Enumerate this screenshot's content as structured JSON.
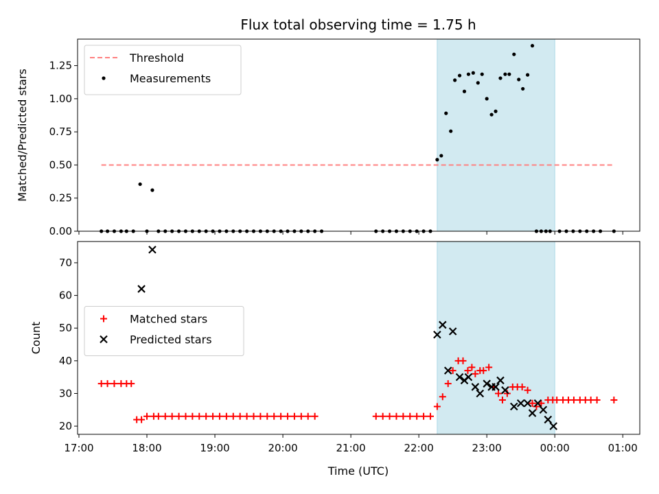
{
  "chart_data": {
    "title": "Flux total observing time = 1.75 h",
    "xlabel": "Time (UTC)",
    "x_unit": "hours after 17:00 UTC",
    "xlim": [
      -0.02,
      8.25
    ],
    "xticks": [
      {
        "v": 0,
        "label": "17:00"
      },
      {
        "v": 1,
        "label": "18:00"
      },
      {
        "v": 2,
        "label": "19:00"
      },
      {
        "v": 3,
        "label": "20:00"
      },
      {
        "v": 4,
        "label": "21:00"
      },
      {
        "v": 5,
        "label": "22:00"
      },
      {
        "v": 6,
        "label": "23:00"
      },
      {
        "v": 7,
        "label": "00:00"
      },
      {
        "v": 8,
        "label": "01:00"
      }
    ],
    "highlight_span": [
      5.27,
      7.0
    ],
    "highlight_color": "#add8e6",
    "panels": [
      {
        "type": "scatter",
        "ylabel": "Matched/Predicted stars",
        "ylim": [
          0,
          1.45
        ],
        "yticks": [
          0,
          0.25,
          0.5,
          0.75,
          1.0,
          1.25
        ],
        "ytick_labels": [
          "0.00",
          "0.25",
          "0.50",
          "0.75",
          "1.00",
          "1.25"
        ],
        "legend_position": "top-left",
        "threshold": {
          "name": "Threshold",
          "value": 0.5,
          "x_range": [
            0.33,
            7.87
          ],
          "color": "#ff7f7f"
        },
        "series": [
          {
            "name": "Measurements",
            "marker": "dot",
            "color": "#000000",
            "x": [
              0.33,
              0.42,
              0.52,
              0.62,
              0.7,
              0.8,
              0.9,
              1.0,
              1.08,
              1.17,
              1.27,
              1.37,
              1.47,
              1.57,
              1.67,
              1.77,
              1.87,
              1.97,
              2.07,
              2.17,
              2.27,
              2.37,
              2.47,
              2.57,
              2.67,
              2.77,
              2.87,
              2.97,
              3.07,
              3.17,
              3.27,
              3.37,
              3.47,
              3.57,
              4.37,
              4.47,
              4.57,
              4.67,
              4.77,
              4.87,
              4.97,
              5.07,
              5.17,
              5.27,
              5.33,
              5.4,
              5.47,
              5.53,
              5.6,
              5.67,
              5.73,
              5.8,
              5.87,
              5.93,
              6.0,
              6.07,
              6.13,
              6.2,
              6.27,
              6.33,
              6.4,
              6.47,
              6.53,
              6.6,
              6.67,
              6.73,
              6.8,
              6.87,
              6.93,
              7.07,
              7.17,
              7.27,
              7.37,
              7.47,
              7.57,
              7.67,
              7.87
            ],
            "y": [
              0,
              0,
              0,
              0,
              0,
              0,
              0.355,
              0,
              0.31,
              0,
              0,
              0,
              0,
              0,
              0,
              0,
              0,
              0,
              0,
              0,
              0,
              0,
              0,
              0,
              0,
              0,
              0,
              0,
              0,
              0,
              0,
              0,
              0,
              0,
              0,
              0,
              0,
              0,
              0,
              0,
              0,
              0,
              0,
              0.54,
              0.57,
              0.89,
              0.755,
              1.14,
              1.175,
              1.055,
              1.185,
              1.195,
              1.12,
              1.185,
              1.0,
              0.88,
              0.905,
              1.155,
              1.185,
              1.185,
              1.335,
              1.145,
              1.075,
              1.18,
              1.4,
              0,
              0,
              0,
              0,
              0,
              0,
              0,
              0,
              0,
              0,
              0,
              0
            ]
          }
        ]
      },
      {
        "type": "scatter",
        "ylabel": "Count",
        "ylim": [
          17.5,
          76.5
        ],
        "yticks": [
          20,
          30,
          40,
          50,
          60,
          70
        ],
        "ytick_labels": [
          "20",
          "30",
          "40",
          "50",
          "60",
          "70"
        ],
        "legend_position": "center-left",
        "series": [
          {
            "name": "Matched stars",
            "marker": "plus",
            "color": "#ff0000",
            "x": [
              0.33,
              0.42,
              0.52,
              0.62,
              0.7,
              0.77,
              0.85,
              0.92,
              1.0,
              1.1,
              1.17,
              1.27,
              1.37,
              1.47,
              1.57,
              1.67,
              1.77,
              1.87,
              1.97,
              2.07,
              2.17,
              2.27,
              2.37,
              2.47,
              2.57,
              2.67,
              2.77,
              2.87,
              2.97,
              3.07,
              3.17,
              3.27,
              3.37,
              3.47,
              4.37,
              4.47,
              4.57,
              4.67,
              4.77,
              4.87,
              4.97,
              5.07,
              5.17,
              5.27,
              5.35,
              5.43,
              5.5,
              5.58,
              5.65,
              5.72,
              5.78,
              5.83,
              5.9,
              5.95,
              6.03,
              6.1,
              6.17,
              6.23,
              6.3,
              6.38,
              6.45,
              6.52,
              6.6,
              6.67,
              6.73,
              6.8,
              6.9,
              6.97,
              7.03,
              7.12,
              7.2,
              7.28,
              7.37,
              7.45,
              7.53,
              7.62,
              7.87
            ],
            "y": [
              33,
              33,
              33,
              33,
              33,
              33,
              22,
              22,
              23,
              23,
              23,
              23,
              23,
              23,
              23,
              23,
              23,
              23,
              23,
              23,
              23,
              23,
              23,
              23,
              23,
              23,
              23,
              23,
              23,
              23,
              23,
              23,
              23,
              23,
              23,
              23,
              23,
              23,
              23,
              23,
              23,
              23,
              23,
              26,
              29,
              33,
              37,
              40,
              40,
              37,
              38,
              36,
              37,
              37,
              38,
              32,
              30,
              28,
              30,
              32,
              32,
              32,
              31,
              27,
              26,
              27,
              28,
              28,
              28,
              28,
              28,
              28,
              28,
              28,
              28,
              28,
              28
            ]
          },
          {
            "name": "Predicted stars",
            "marker": "x",
            "color": "#000000",
            "x": [
              0.92,
              1.08,
              5.27,
              5.35,
              5.43,
              5.5,
              5.6,
              5.67,
              5.73,
              5.83,
              5.9,
              6.0,
              6.07,
              6.13,
              6.2,
              6.27,
              6.4,
              6.5,
              6.6,
              6.67,
              6.75,
              6.83,
              6.9,
              6.98
            ],
            "y": [
              62,
              74,
              48,
              51,
              37,
              49,
              35,
              34,
              35,
              32,
              30,
              33,
              32,
              32,
              34,
              31,
              26,
              27,
              27,
              24,
              27,
              25,
              22,
              20
            ]
          }
        ]
      }
    ]
  }
}
